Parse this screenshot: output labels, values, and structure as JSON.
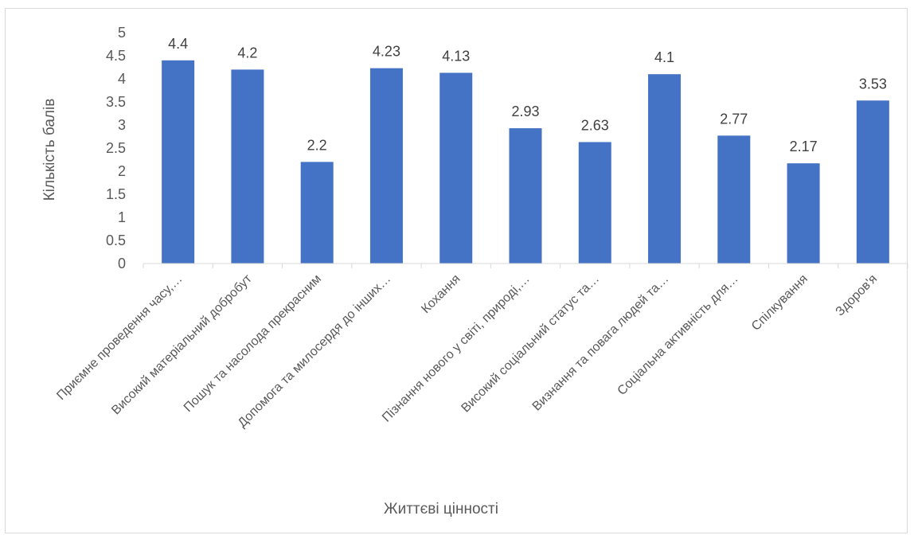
{
  "chart_data": {
    "type": "bar",
    "title": "",
    "xlabel": "Життєві цінності",
    "ylabel": "Кількість балів",
    "ylim": [
      0,
      5
    ],
    "yticks": [
      "0",
      "0.5",
      "1",
      "1.5",
      "2",
      "2.5",
      "3",
      "3.5",
      "4",
      "4.5",
      "5"
    ],
    "categories": [
      "Приємне проведення часу,…",
      "Високий матеріальний добробут",
      "Пошук та насолода прекрасним",
      "Допомога та милосердя до інших…",
      "Кохання",
      "Пізнання нового у світі, природі,…",
      "Високий соціальний статус та…",
      "Визнання та повага людей та…",
      "Соціальна активність для…",
      "Спілкування",
      "Здоров'я"
    ],
    "values": [
      4.4,
      4.2,
      2.2,
      4.23,
      4.13,
      2.93,
      2.63,
      4.1,
      2.77,
      2.17,
      3.53
    ],
    "data_labels": [
      "4.4",
      "4.2",
      "2.2",
      "4.23",
      "4.13",
      "2.93",
      "2.63",
      "4.1",
      "2.77",
      "2.17",
      "3.53"
    ],
    "bar_color": "#4472C4",
    "grid": false,
    "legend": "none"
  }
}
